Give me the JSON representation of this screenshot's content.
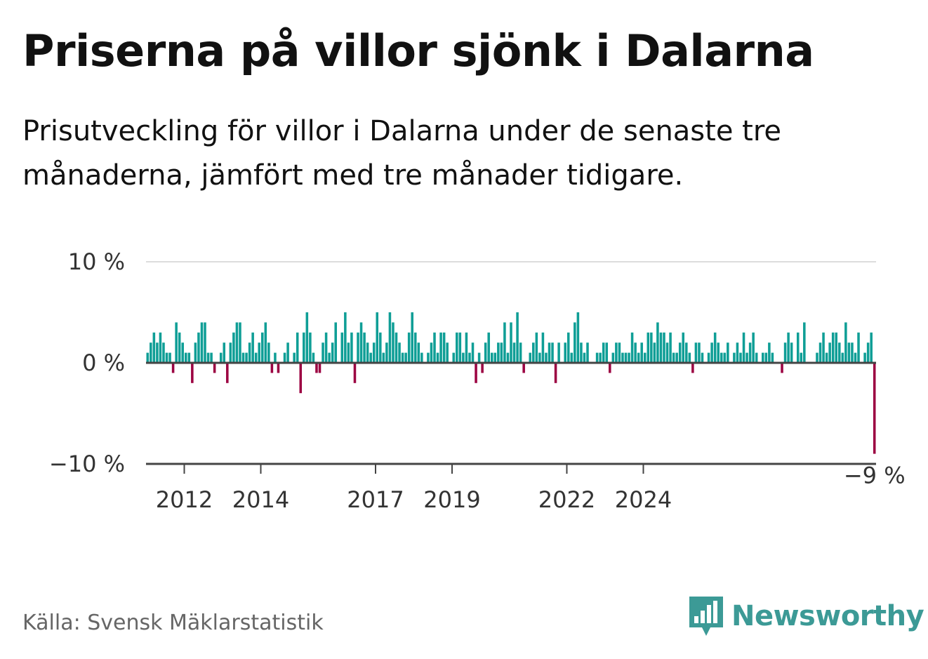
{
  "title": "Priserna på villor sjönk i Dalarna",
  "subtitle": "Prisutveckling för villor i Dalarna under de senaste tre månaderna, jämfört med tre månader tidigare.",
  "source": "Källa: Svensk Mäklarstatistik",
  "brand": "Newsworthy",
  "colors": {
    "positive": "#0f9e96",
    "negative": "#9c0342",
    "zero_line": "#444444",
    "grid": "#dddddd",
    "brand": "#3c9a96"
  },
  "chart_data": {
    "type": "bar",
    "title": "Priserna på villor sjönk i Dalarna",
    "xlabel": "",
    "ylabel": "",
    "ylim": [
      -10.5,
      11.8
    ],
    "y_ticks": [
      {
        "value": 10,
        "label": "10 %"
      },
      {
        "value": 0,
        "label": "0 %"
      },
      {
        "value": -10,
        "label": "−10 %"
      }
    ],
    "x_ticks": [
      {
        "year": 2012,
        "label": "2012"
      },
      {
        "year": 2014,
        "label": "2014"
      },
      {
        "year": 2017,
        "label": "2017"
      },
      {
        "year": 2019,
        "label": "2019"
      },
      {
        "year": 2022,
        "label": "2022"
      },
      {
        "year": 2024,
        "label": "2024"
      }
    ],
    "start": {
      "year": 2011,
      "month": 1
    },
    "annotation": {
      "label": "−9 %",
      "value": -9
    },
    "values": [
      1,
      2,
      3,
      2,
      3,
      2,
      1,
      1,
      -1,
      4,
      3,
      2,
      1,
      1,
      -2,
      2,
      3,
      4,
      4,
      1,
      1,
      -1,
      0,
      1,
      2,
      -2,
      2,
      3,
      4,
      4,
      1,
      1,
      2,
      3,
      1,
      2,
      3,
      4,
      2,
      -1,
      1,
      -1,
      0,
      1,
      2,
      0,
      1,
      3,
      -3,
      3,
      5,
      3,
      1,
      -1,
      -1,
      2,
      3,
      1,
      2,
      4,
      0,
      3,
      5,
      2,
      3,
      -2,
      3,
      4,
      3,
      2,
      1,
      2,
      5,
      3,
      1,
      2,
      5,
      4,
      3,
      2,
      1,
      1,
      3,
      5,
      3,
      2,
      1,
      0,
      1,
      2,
      3,
      1,
      3,
      3,
      2,
      0,
      1,
      3,
      3,
      1,
      3,
      1,
      2,
      -2,
      1,
      -1,
      2,
      3,
      1,
      1,
      2,
      2,
      4,
      1,
      4,
      2,
      5,
      2,
      -1,
      0,
      1,
      2,
      3,
      1,
      3,
      1,
      2,
      2,
      -2,
      2,
      0,
      2,
      3,
      1,
      4,
      5,
      2,
      1,
      2,
      0,
      0,
      1,
      1,
      2,
      2,
      -1,
      1,
      2,
      2,
      1,
      1,
      1,
      3,
      2,
      1,
      2,
      1,
      3,
      3,
      2,
      4,
      3,
      3,
      2,
      3,
      1,
      1,
      2,
      3,
      2,
      1,
      -1,
      2,
      2,
      1,
      0,
      1,
      2,
      3,
      2,
      1,
      1,
      2,
      0,
      1,
      2,
      1,
      3,
      1,
      2,
      3,
      1,
      0,
      1,
      1,
      2,
      1,
      0,
      0,
      -1,
      2,
      3,
      2,
      0,
      3,
      1,
      4,
      0,
      0,
      0,
      1,
      2,
      3,
      1,
      2,
      3,
      3,
      2,
      1,
      4,
      2,
      2,
      1,
      3,
      0,
      1,
      2,
      3,
      -9
    ]
  }
}
